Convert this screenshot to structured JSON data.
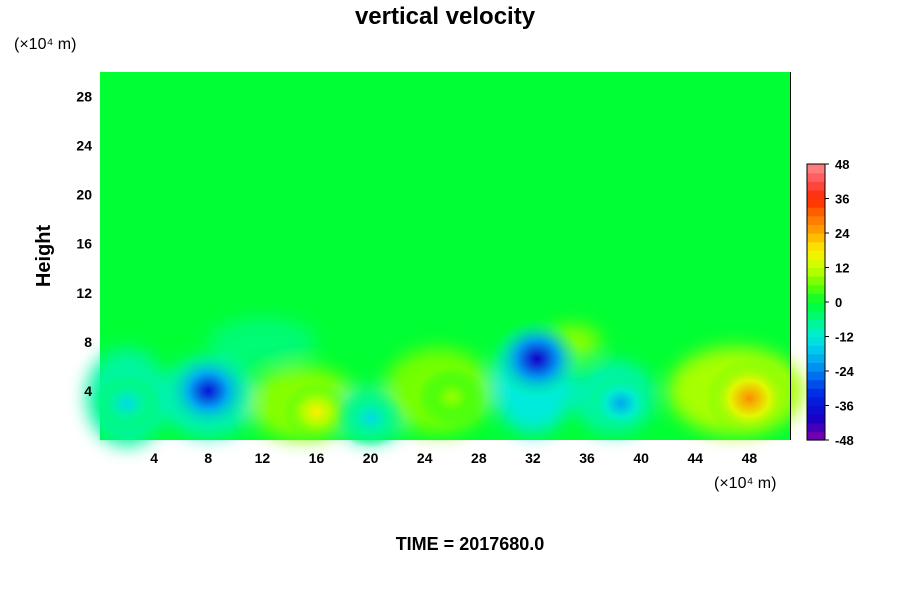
{
  "chart_data": {
    "type": "heatmap",
    "title": "vertical velocity",
    "ylabel": "Height",
    "x_unit_label": "(×10⁴ m)",
    "y_unit_label": "(×10⁴ m)",
    "x_ticks": [
      4,
      8,
      12,
      16,
      20,
      24,
      28,
      32,
      36,
      40,
      44,
      48
    ],
    "y_ticks": [
      4,
      8,
      12,
      16,
      20,
      24,
      28
    ],
    "xlim": [
      0,
      51
    ],
    "ylim": [
      0,
      30
    ],
    "colorbar": {
      "ticks": [
        48,
        36,
        24,
        12,
        0,
        -12,
        -24,
        -36,
        -48
      ],
      "range": [
        -48,
        48
      ],
      "levels": 32
    },
    "features": [
      {
        "x": 8,
        "y": 4,
        "value": -36
      },
      {
        "x": 32.3,
        "y": 6.6,
        "value": -40
      },
      {
        "x": 48,
        "y": 3.4,
        "value": 27
      },
      {
        "x": 16,
        "y": 2.3,
        "value": 18
      },
      {
        "x": 20,
        "y": 1.8,
        "value": -14
      },
      {
        "x": 38.5,
        "y": 3,
        "value": -20
      },
      {
        "x": 26,
        "y": 3.5,
        "value": 9
      },
      {
        "x": 2,
        "y": 3,
        "value": -14
      }
    ],
    "footer": "TIME = 2017680.0"
  }
}
